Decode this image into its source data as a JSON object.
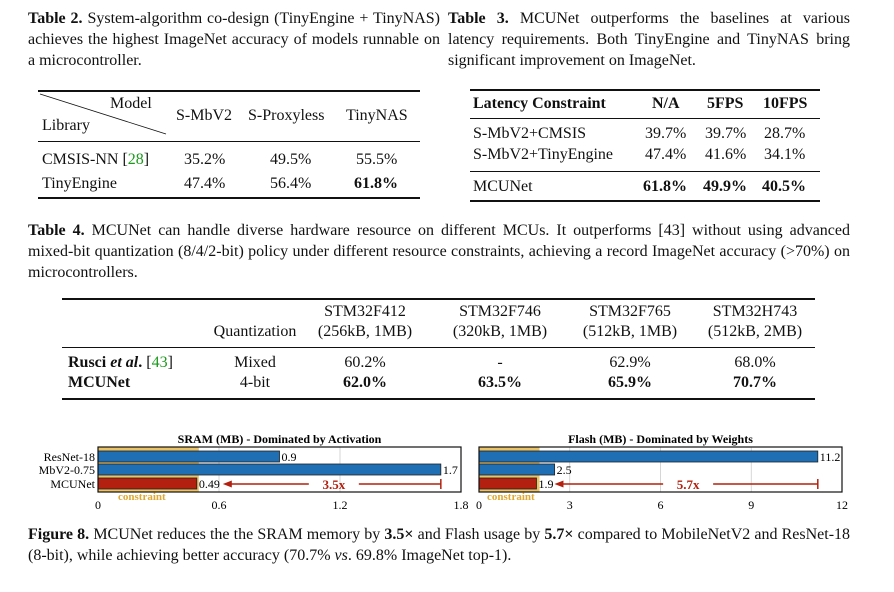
{
  "table2": {
    "label": "Table 2.",
    "caption": "System-algorithm co-design (TinyEngine + TinyNAS) achieves the highest ImageNet accuracy of models runnable on a microcontroller.",
    "corner_top": "Model",
    "corner_bottom": "Library",
    "columns": [
      "S-MbV2",
      "S-Proxyless",
      "TinyNAS"
    ],
    "rows": [
      {
        "name": "CMSIS-NN",
        "ref": "28",
        "values": [
          "35.2%",
          "49.5%",
          "55.5%"
        ]
      },
      {
        "name": "TinyEngine",
        "values": [
          "47.4%",
          "56.4%",
          "61.8%"
        ],
        "bold_index": 2
      }
    ]
  },
  "table3": {
    "label": "Table 3.",
    "caption": "MCUNet outperforms the baselines at various latency requirements. Both TinyEngine and TinyNAS bring significant improvement on ImageNet.",
    "columns": [
      "Latency Constraint",
      "N/A",
      "5FPS",
      "10FPS"
    ],
    "rows": [
      {
        "name": "S-MbV2+CMSIS",
        "values": [
          "39.7%",
          "39.7%",
          "28.7%"
        ]
      },
      {
        "name": "S-MbV2+TinyEngine",
        "values": [
          "47.4%",
          "41.6%",
          "34.1%"
        ]
      },
      {
        "name": "MCUNet",
        "values": [
          "61.8%",
          "49.9%",
          "40.5%"
        ],
        "bold": true
      }
    ]
  },
  "table4": {
    "label": "Table 4.",
    "caption": "MCUNet can handle diverse hardware resource on different MCUs. It outperforms [43] without using advanced mixed-bit quantization (8/4/2-bit) policy under different resource constraints, achieving a record ImageNet accuracy (>70%) on microcontrollers.",
    "caption_ref": "43",
    "columns": [
      {
        "top": "",
        "bottom": "Quantization"
      },
      {
        "top": "STM32F412",
        "bottom": "(256kB, 1MB)"
      },
      {
        "top": "STM32F746",
        "bottom": "(320kB, 1MB)"
      },
      {
        "top": "STM32F765",
        "bottom": "(512kB, 1MB)"
      },
      {
        "top": "STM32H743",
        "bottom": "(512kB, 2MB)"
      }
    ],
    "rows": [
      {
        "name_a": "Rusci ",
        "name_i": "et al",
        "name_b": ".",
        "ref": "43",
        "quant": "Mixed",
        "values": [
          "60.2%",
          "-",
          "62.9%",
          "68.0%"
        ]
      },
      {
        "name_a": "MCUNet",
        "quant": "4-bit",
        "values": [
          "62.0%",
          "63.5%",
          "65.9%",
          "70.7%"
        ],
        "bold": true
      }
    ]
  },
  "chart_data": [
    {
      "type": "bar",
      "title": "SRAM (MB) - Dominated by Activation",
      "categories": [
        "ResNet-18",
        "MbV2-0.75",
        "MCUNet"
      ],
      "values": [
        0.9,
        1.7,
        0.49
      ],
      "labels": [
        "0.9",
        "1.7",
        "0.49"
      ],
      "xlim": [
        0,
        1.8
      ],
      "xticks": [
        "0",
        "0.6",
        "1.2",
        "1.8"
      ],
      "tickvals": [
        0,
        0.6,
        1.2,
        1.8
      ],
      "constraint": 0.5,
      "constraint_label": "constraint",
      "annotation": "3.5x",
      "grid": true
    },
    {
      "type": "bar",
      "title": "Flash (MB) - Dominated by Weights",
      "categories": [
        "ResNet-18",
        "MbV2-0.75",
        "MCUNet"
      ],
      "values": [
        11.2,
        2.5,
        1.9
      ],
      "labels": [
        "11.2",
        "2.5",
        "1.9"
      ],
      "xlim": [
        0,
        12
      ],
      "xticks": [
        "0",
        "3",
        "6",
        "9",
        "12"
      ],
      "tickvals": [
        0,
        3,
        6,
        9,
        12
      ],
      "constraint": 2,
      "constraint_label": "constraint",
      "annotation": "5.7x",
      "grid": true
    }
  ],
  "colors": {
    "blue": "#1f6fb4",
    "red": "#b3200f",
    "constraint": "#e8b84a",
    "link": "#1a9a1a"
  },
  "figure8": {
    "label": "Figure 8.",
    "t1": "MCUNet reduces the the SRAM memory by ",
    "b1": "3.5×",
    "t2": " and Flash usage by ",
    "b2": "5.7×",
    "t3": " compared to MobileNetV2 and ResNet-18 (8-bit), while achieving better accuracy (70.7% ",
    "i1": "vs",
    "t4": ". 69.8% ImageNet top-1)."
  }
}
